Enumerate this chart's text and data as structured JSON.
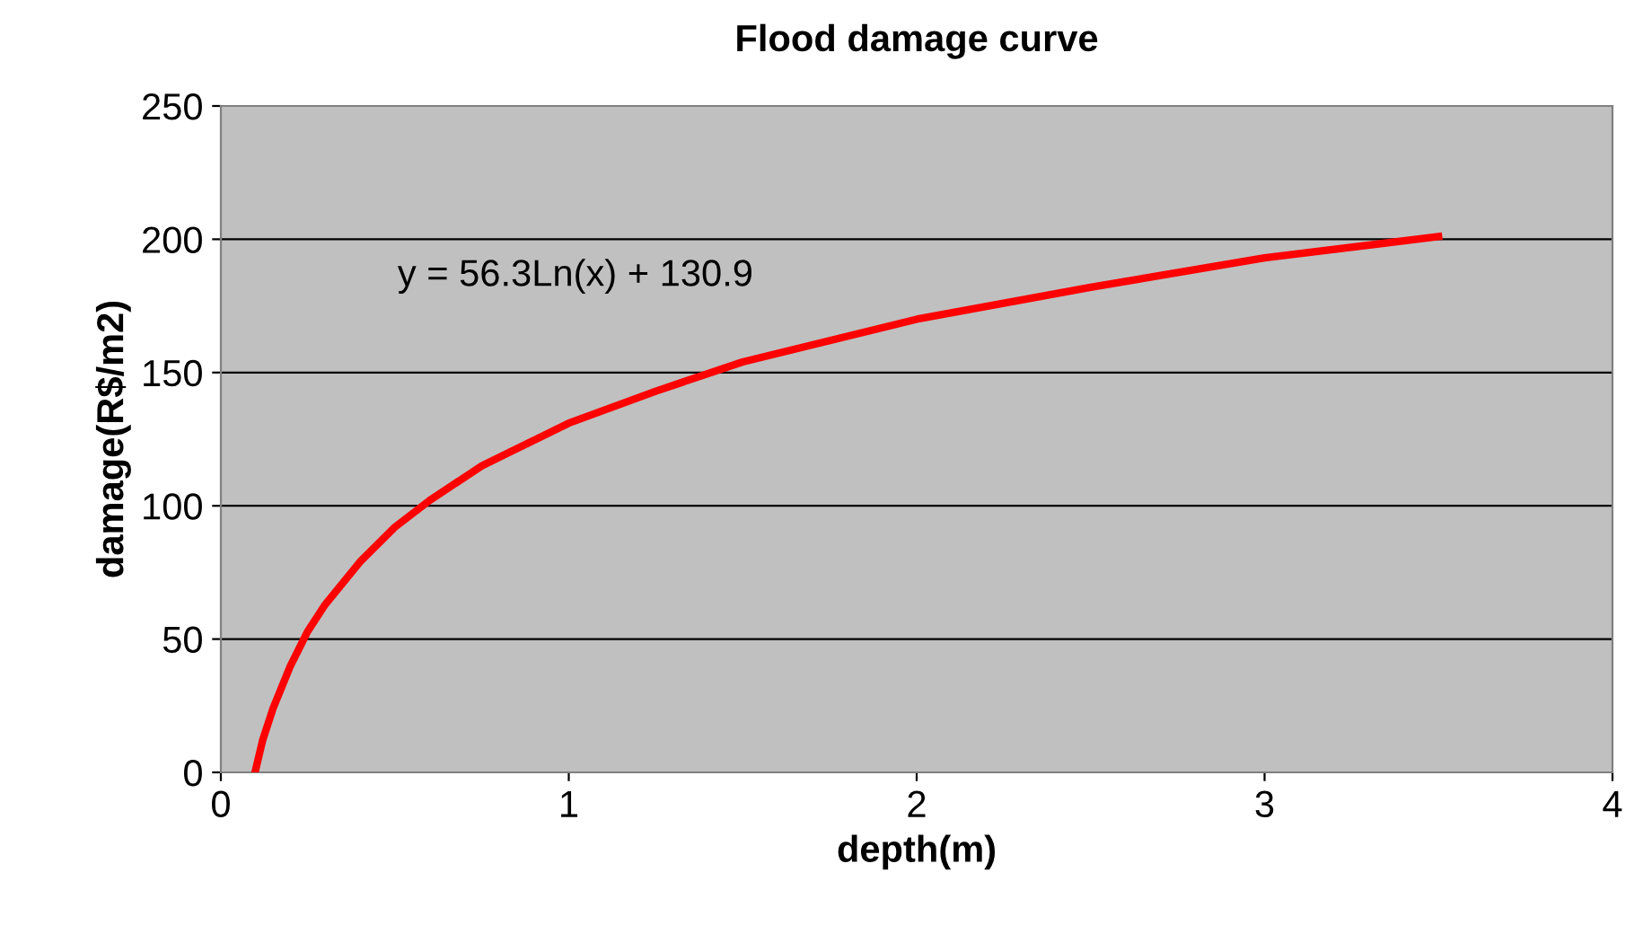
{
  "chart_data": {
    "type": "line",
    "title": "Flood damage curve",
    "xlabel": "depth(m)",
    "ylabel": "damage(R$/m2)",
    "annotations": [
      "y = 56.3Ln(x) + 130.9"
    ],
    "series": [
      {
        "color": "#ff0000",
        "x": [
          0.1,
          0.12,
          0.15,
          0.2,
          0.25,
          0.3,
          0.4,
          0.5,
          0.6,
          0.75,
          1,
          1.25,
          1.5,
          1.75,
          2,
          2.5,
          3,
          3.5
        ],
        "values": [
          1,
          12,
          24,
          40,
          53,
          63,
          79,
          92,
          102,
          115,
          131,
          143,
          154,
          162,
          170,
          182,
          193,
          201
        ]
      }
    ],
    "xlim": [
      0,
      4
    ],
    "xticks": [
      0,
      1,
      2,
      3,
      4
    ],
    "ylim": [
      0,
      250
    ],
    "yticks": [
      0,
      50,
      100,
      150,
      200,
      250
    ],
    "grid": "y",
    "legend": false,
    "marker": "none",
    "line_style": "solid"
  }
}
